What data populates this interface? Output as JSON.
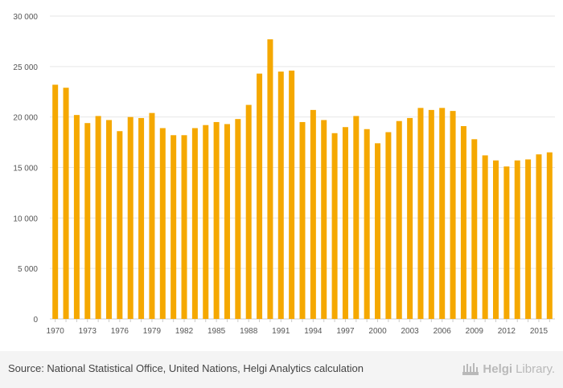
{
  "chart_data": {
    "type": "bar",
    "title": "",
    "xlabel": "",
    "ylabel": "",
    "ylim": [
      0,
      30000
    ],
    "yticks": [
      0,
      5000,
      10000,
      15000,
      20000,
      25000,
      30000
    ],
    "ytick_labels": [
      "0",
      "5 000",
      "10 000",
      "15 000",
      "20 000",
      "25 000",
      "30 000"
    ],
    "grid": true,
    "bar_color": "#f5a800",
    "categories": [
      "1970",
      "1971",
      "1972",
      "1973",
      "1974",
      "1975",
      "1976",
      "1977",
      "1978",
      "1979",
      "1980",
      "1981",
      "1982",
      "1983",
      "1984",
      "1985",
      "1986",
      "1987",
      "1988",
      "1989",
      "1990",
      "1991",
      "1992",
      "1993",
      "1994",
      "1995",
      "1996",
      "1997",
      "1998",
      "1999",
      "2000",
      "2001",
      "2002",
      "2003",
      "2004",
      "2005",
      "2006",
      "2007",
      "2008",
      "2009",
      "2010",
      "2011",
      "2012",
      "2013",
      "2014",
      "2015",
      "2016"
    ],
    "xtick_labels": [
      "1970",
      "1973",
      "1976",
      "1979",
      "1982",
      "1985",
      "1988",
      "1991",
      "1994",
      "1997",
      "2000",
      "2003",
      "2006",
      "2009",
      "2012",
      "2015"
    ],
    "values": [
      23200,
      22900,
      20200,
      19400,
      20100,
      19700,
      18600,
      20000,
      19900,
      20400,
      18900,
      18200,
      18200,
      18900,
      19200,
      19500,
      19300,
      19800,
      21200,
      24300,
      27700,
      24500,
      24600,
      19500,
      20700,
      19700,
      18400,
      19000,
      20100,
      18800,
      17400,
      18500,
      19600,
      19900,
      20900,
      20700,
      20900,
      20600,
      19100,
      17800,
      16200,
      15700,
      15100,
      15700,
      15800,
      16300,
      16500
    ]
  },
  "footer": {
    "source": "Source: National Statistical Office, United Nations, Helgi Analytics calculation",
    "brand_part1": "Helgi",
    "brand_part2": "Library."
  }
}
